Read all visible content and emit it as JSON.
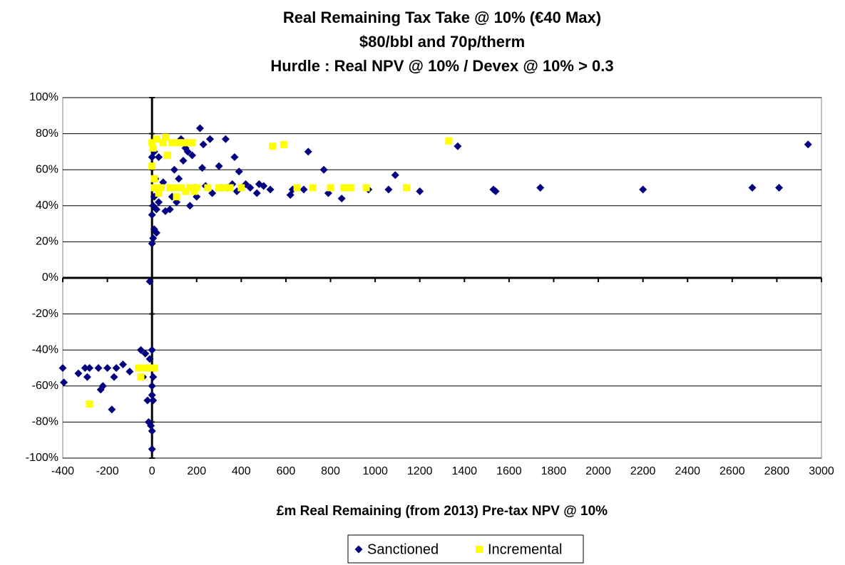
{
  "chart_data": {
    "type": "scatter",
    "title": [
      "Real Remaining Tax Take @ 10% (€40 Max)",
      "$80/bbl and 70p/therm",
      "Hurdle : Real NPV @ 10% / Devex @ 10% > 0.3"
    ],
    "x_label": "£m Real Remaining (from 2013) Pre-tax NPV @ 10%",
    "xlim": [
      -400,
      3000
    ],
    "xticks": [
      -400,
      -200,
      0,
      200,
      400,
      600,
      800,
      1000,
      1200,
      1400,
      1600,
      1800,
      2000,
      2200,
      2400,
      2600,
      2800,
      3000
    ],
    "ylim": [
      -100,
      100
    ],
    "yticks": [
      {
        "value": -100,
        "label": "-100%"
      },
      {
        "value": -80,
        "label": "-80%"
      },
      {
        "value": -60,
        "label": "-60%"
      },
      {
        "value": -40,
        "label": "-40%"
      },
      {
        "value": -20,
        "label": "-20%"
      },
      {
        "value": 0,
        "label": "0%"
      },
      {
        "value": 20,
        "label": "20%"
      },
      {
        "value": 40,
        "label": "40%"
      },
      {
        "value": 60,
        "label": "60%"
      },
      {
        "value": 80,
        "label": "80%"
      },
      {
        "value": 100,
        "label": "100%"
      }
    ],
    "grid": true,
    "legend": "bottom",
    "series": [
      {
        "name": "Sanctioned",
        "color": "#000080",
        "marker": "diamond",
        "x": [
          -400,
          -395,
          -330,
          -300,
          -290,
          -280,
          -240,
          -230,
          -220,
          -200,
          -180,
          -170,
          -160,
          -130,
          -100,
          -50,
          -40,
          -30,
          -20,
          -15,
          -10,
          -10,
          -5,
          0,
          0,
          0,
          0,
          0,
          5,
          5,
          0,
          5,
          10,
          20,
          0,
          5,
          10,
          20,
          30,
          40,
          15,
          0,
          10,
          30,
          50,
          60,
          80,
          90,
          100,
          110,
          120,
          130,
          140,
          150,
          160,
          170,
          180,
          190,
          200,
          215,
          225,
          230,
          240,
          260,
          270,
          300,
          310,
          330,
          340,
          360,
          370,
          380,
          390,
          420,
          440,
          470,
          480,
          500,
          530,
          620,
          630,
          680,
          700,
          770,
          790,
          850,
          970,
          1060,
          1090,
          1200,
          1370,
          1530,
          1540,
          1740,
          2200,
          2690,
          2810,
          2940
        ],
        "values": [
          -50,
          -58,
          -53,
          -50,
          -55,
          -50,
          -50,
          -62,
          -60,
          -50,
          -73,
          -55,
          -50,
          -48,
          -52,
          -40,
          -55,
          -42,
          -68,
          -80,
          -2,
          -45,
          -82,
          -85,
          -95,
          -40,
          -60,
          -65,
          -68,
          -55,
          19,
          22,
          27,
          25,
          35,
          40,
          45,
          38,
          42,
          50,
          55,
          67,
          70,
          67,
          53,
          37,
          38,
          45,
          60,
          42,
          55,
          77,
          65,
          72,
          70,
          40,
          68,
          50,
          45,
          83,
          61,
          74,
          51,
          77,
          47,
          62,
          50,
          77,
          50,
          52,
          67,
          48,
          59,
          52,
          50,
          47,
          52,
          51,
          49,
          46,
          49,
          49,
          70,
          60,
          47,
          44,
          49,
          49,
          57,
          48,
          73,
          49,
          48,
          50,
          49,
          50,
          50,
          74
        ]
      },
      {
        "name": "Incremental",
        "color": "#ffff00",
        "marker": "square",
        "x": [
          -280,
          -60,
          -50,
          -30,
          0,
          10,
          0,
          0,
          5,
          10,
          10,
          20,
          30,
          40,
          50,
          60,
          70,
          80,
          90,
          100,
          110,
          120,
          130,
          140,
          150,
          160,
          170,
          180,
          190,
          200,
          250,
          300,
          320,
          350,
          400,
          540,
          590,
          650,
          720,
          800,
          860,
          890,
          960,
          1140,
          1330
        ],
        "values": [
          -70,
          -50,
          -55,
          -50,
          -50,
          -50,
          62,
          75,
          72,
          55,
          50,
          77,
          47,
          50,
          75,
          78,
          68,
          50,
          75,
          50,
          45,
          75,
          50,
          75,
          48,
          75,
          50,
          75,
          48,
          50,
          50,
          50,
          50,
          50,
          50,
          73,
          74,
          50,
          50,
          50,
          50,
          50,
          50,
          50,
          76
        ]
      }
    ]
  }
}
